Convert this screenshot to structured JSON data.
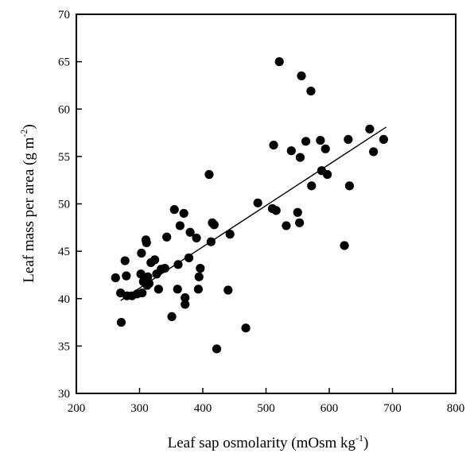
{
  "chart_data": {
    "type": "scatter",
    "title": "",
    "xlabel": "Leaf sap osmolarity (mOsm kg",
    "xlabel_sup": "-1",
    "xlabel_close": ")",
    "ylabel": "Leaf mass per area (g m",
    "ylabel_sup": "-2",
    "ylabel_close": ")",
    "xlim": [
      200,
      800
    ],
    "ylim": [
      30,
      70
    ],
    "x_ticks": [
      200,
      300,
      400,
      500,
      600,
      700,
      800
    ],
    "y_ticks": [
      30,
      35,
      40,
      45,
      50,
      55,
      60,
      65,
      70
    ],
    "grid": false,
    "legend": "none",
    "marker_color": "#000000",
    "points": [
      [
        262,
        42.2
      ],
      [
        270,
        40.6
      ],
      [
        271,
        37.5
      ],
      [
        277,
        44.0
      ],
      [
        279,
        42.4
      ],
      [
        280,
        40.3
      ],
      [
        288,
        40.3
      ],
      [
        296,
        40.5
      ],
      [
        302,
        42.6
      ],
      [
        303,
        44.8
      ],
      [
        304,
        40.6
      ],
      [
        306,
        41.8
      ],
      [
        310,
        46.2
      ],
      [
        311,
        45.9
      ],
      [
        312,
        41.4
      ],
      [
        313,
        42.3
      ],
      [
        315,
        41.6
      ],
      [
        318,
        43.8
      ],
      [
        324,
        44.1
      ],
      [
        327,
        42.6
      ],
      [
        330,
        41.0
      ],
      [
        334,
        43.1
      ],
      [
        340,
        43.2
      ],
      [
        343,
        46.5
      ],
      [
        351,
        38.1
      ],
      [
        355,
        49.4
      ],
      [
        360,
        41.0
      ],
      [
        361,
        43.6
      ],
      [
        364,
        47.7
      ],
      [
        370,
        49.0
      ],
      [
        372,
        39.4
      ],
      [
        372,
        40.1
      ],
      [
        378,
        44.3
      ],
      [
        380,
        47.0
      ],
      [
        390,
        46.4
      ],
      [
        393,
        41.0
      ],
      [
        394,
        42.3
      ],
      [
        396,
        43.2
      ],
      [
        410,
        53.1
      ],
      [
        413,
        46.0
      ],
      [
        415,
        48.0
      ],
      [
        418,
        47.8
      ],
      [
        422,
        34.7
      ],
      [
        440,
        40.9
      ],
      [
        443,
        46.8
      ],
      [
        468,
        36.9
      ],
      [
        487,
        50.1
      ],
      [
        510,
        49.5
      ],
      [
        512,
        56.2
      ],
      [
        516,
        49.3
      ],
      [
        521,
        65.0
      ],
      [
        532,
        47.7
      ],
      [
        540,
        55.6
      ],
      [
        550,
        49.1
      ],
      [
        553,
        48.0
      ],
      [
        554,
        54.9
      ],
      [
        556,
        63.5
      ],
      [
        563,
        56.6
      ],
      [
        571,
        61.9
      ],
      [
        572,
        51.9
      ],
      [
        586,
        56.7
      ],
      [
        588,
        53.5
      ],
      [
        594,
        55.8
      ],
      [
        597,
        53.1
      ],
      [
        624,
        45.6
      ],
      [
        630,
        56.8
      ],
      [
        632,
        51.9
      ],
      [
        664,
        57.9
      ],
      [
        670,
        55.5
      ],
      [
        686,
        56.8
      ]
    ],
    "trendline": {
      "x": [
        270,
        690
      ],
      "y": [
        39.8,
        58.1
      ]
    }
  }
}
